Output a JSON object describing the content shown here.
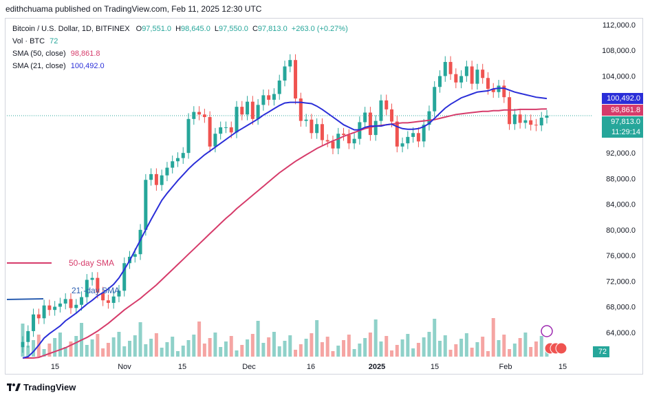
{
  "header": {
    "publisher": "edithchuama published on TradingView.com, Feb 11, 2025 12:30 UTC"
  },
  "legend": {
    "symbol": "Bitcoin / U.S. Dollar, 1D, BITFINEX",
    "ohlc": {
      "o_label": "O",
      "o": "97,551.0",
      "h_label": "H",
      "h": "98,645.0",
      "l_label": "L",
      "l": "97,550.0",
      "c_label": "C",
      "c": "97,813.0",
      "change": "+263.0 (+0.27%)"
    },
    "vol_label": "Vol · BTC",
    "vol_value": "72",
    "sma50_label": "SMA (50, close)",
    "sma50_value": "98,861.8",
    "sma21_label": "SMA (21, close)",
    "sma21_value": "100,492.0"
  },
  "annotations": {
    "sma50": "50-day SMA",
    "sma21": "21`-day SMA"
  },
  "badges": {
    "sma21": "100,492.0",
    "sma50": "98,861.8",
    "last": "97,813.0",
    "countdown": "11:29:14",
    "volume": "72"
  },
  "colors": {
    "up": "#26a69a",
    "down": "#ef5350",
    "sma21": "#2a2ed8",
    "sma50": "#d63b6a",
    "volUp": "#8fd1c9",
    "volDown": "#f5a5a3"
  },
  "footer": {
    "brand": "TradingView"
  },
  "chart_data": {
    "type": "candlestick",
    "title": "Bitcoin / U.S. Dollar, 1D, BITFINEX",
    "ylim": [
      60000,
      112000
    ],
    "y_ticks": [
      "112,000.0",
      "108,000.0",
      "104,000.0",
      "100,492.0",
      "98,861.8",
      "97,813.0",
      "92,000.0",
      "88,000.0",
      "84,000.0",
      "80,000.0",
      "76,000.0",
      "72,000.0",
      "68,000.0",
      "64,000.0"
    ],
    "x_ticks": [
      "15",
      "Nov",
      "15",
      "Dec",
      "16",
      "2025",
      "15",
      "Feb",
      "15"
    ],
    "close": [
      62500,
      64200,
      66800,
      66200,
      68200,
      67500,
      68000,
      68500,
      69200,
      67800,
      68300,
      69500,
      72200,
      72500,
      70200,
      69000,
      68600,
      69600,
      70500,
      74800,
      75800,
      76200,
      80000,
      87800,
      88700,
      87000,
      88500,
      89700,
      90700,
      91200,
      92000,
      97300,
      98400,
      98000,
      97600,
      93000,
      95000,
      96000,
      96000,
      95200,
      99200,
      98000,
      100000,
      97300,
      99500,
      101000,
      100300,
      101200,
      103300,
      105500,
      106500,
      100500,
      97000,
      97200,
      95100,
      96500,
      94000,
      93800,
      92700,
      95000,
      94800,
      93500,
      94200,
      96800,
      98300,
      94800,
      97000,
      100200,
      98800,
      96900,
      93000,
      93500,
      94500,
      95100,
      93800,
      96400,
      98500,
      102300,
      104000,
      106200,
      104300,
      103000,
      104000,
      105500,
      102800,
      105000,
      103700,
      102000,
      101500,
      102500,
      100700,
      96500,
      98000,
      96700,
      97100,
      96400,
      96300,
      97500,
      97813
    ],
    "sma21": [
      60000,
      60200,
      61000,
      62000,
      63100,
      63800,
      64400,
      65000,
      65800,
      66400,
      67000,
      67700,
      68400,
      69000,
      69700,
      70200,
      70800,
      71500,
      72500,
      73800,
      75200,
      76800,
      78400,
      80000,
      81600,
      83100,
      84600,
      85700,
      86700,
      87700,
      88600,
      89500,
      90300,
      91000,
      91700,
      92300,
      92900,
      93500,
      94100,
      94700,
      95300,
      95800,
      96300,
      96800,
      97300,
      97900,
      98400,
      98900,
      99400,
      99800,
      99900,
      99900,
      99900,
      99800,
      99700,
      99300,
      98800,
      98200,
      97600,
      97000,
      96400,
      96000,
      95600,
      95600,
      96000,
      96200,
      96200,
      96200,
      96400,
      96500,
      96100,
      95800,
      95700,
      95700,
      95800,
      96100,
      96600,
      97400,
      98200,
      99000,
      99600,
      100100,
      100600,
      100900,
      101200,
      101500,
      101600,
      101700,
      102000,
      102100,
      102100,
      101800,
      101500,
      101300,
      101100,
      100900,
      100700,
      100600,
      100492
    ],
    "sma50": [
      60000,
      60000,
      60000,
      60100,
      60400,
      60700,
      61000,
      61300,
      61600,
      62000,
      62400,
      62800,
      63200,
      63700,
      64200,
      64800,
      65400,
      66100,
      66800,
      67500,
      68100,
      68700,
      69300,
      70000,
      70700,
      71400,
      72200,
      73000,
      73800,
      74600,
      75400,
      76200,
      77000,
      77800,
      78600,
      79400,
      80200,
      81000,
      81800,
      82500,
      83300,
      84000,
      84700,
      85400,
      86100,
      86800,
      87500,
      88200,
      88900,
      89500,
      90100,
      90700,
      91200,
      91700,
      92200,
      92700,
      93100,
      93500,
      93900,
      94200,
      94600,
      94900,
      95200,
      95500,
      95800,
      96000,
      96200,
      96300,
      96400,
      96500,
      96600,
      96700,
      96700,
      96800,
      96900,
      97000,
      97100,
      97200,
      97400,
      97600,
      97800,
      98000,
      98100,
      98200,
      98300,
      98400,
      98500,
      98500,
      98600,
      98600,
      98700,
      98700,
      98700,
      98800,
      98800,
      98800,
      98800,
      98850,
      98861.8
    ]
  }
}
